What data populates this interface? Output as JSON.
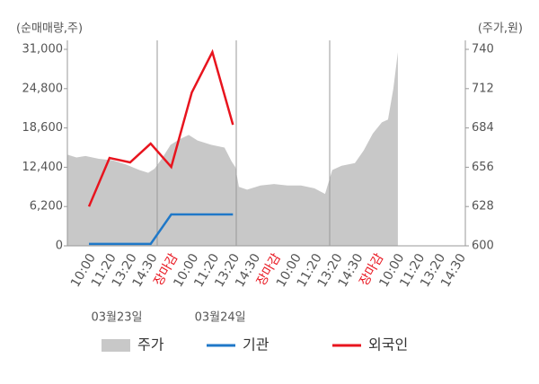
{
  "chart_data": {
    "type": "line",
    "y_axis_label": "(순매매량,주)",
    "y2_axis_label": "(주가,원)",
    "categories": [
      "10:00",
      "11:20",
      "13:20",
      "14:30",
      "장마감",
      "10:00",
      "11:20",
      "13:20",
      "14:30",
      "장마감",
      "10:00",
      "11:20",
      "13:20",
      "14:30",
      "장마감",
      "10:00",
      "11:20",
      "13:20",
      "14:30"
    ],
    "highlight_categories": [
      4,
      9,
      14
    ],
    "highlight_color": "#e8141e",
    "annotations": [
      {
        "text": "03월23일",
        "x": 1.35
      },
      {
        "text": "03월24일",
        "x": 6.38
      }
    ],
    "xlim": [
      -1.05,
      18.3
    ],
    "ylim": [
      0,
      31000
    ],
    "yticks": [
      0,
      {
        "value": 6200,
        "label": "6,200"
      },
      {
        "value": 12400,
        "label": "12,400"
      },
      {
        "value": 18600,
        "label": "18,600"
      },
      {
        "value": 24800,
        "label": "24,800"
      },
      {
        "value": 31000,
        "label": "31,000"
      }
    ],
    "y2lim": [
      600,
      740
    ],
    "y2ticks": [
      600,
      628,
      656,
      684,
      712,
      740
    ],
    "series": [
      {
        "name": "주가",
        "type": "area",
        "axis": "y2",
        "color": "#c8c8c8",
        "x": [
          -1.05,
          -0.61,
          -0.17,
          0.48,
          1.14,
          1.79,
          2.45,
          2.88,
          3.19,
          3.54,
          3.97,
          4.41,
          4.85,
          5.28,
          5.94,
          6.59,
          6.94,
          7.12,
          7.29,
          7.69,
          8.34,
          9.0,
          9.65,
          10.31,
          10.96,
          11.48,
          11.83,
          12.27,
          12.93,
          13.36,
          13.8,
          14.24,
          14.54,
          14.8,
          15.02
        ],
        "values": [
          665,
          663,
          664,
          662,
          661,
          658,
          654,
          652,
          655,
          662,
          672,
          676,
          679,
          675,
          672,
          670,
          660,
          656,
          642,
          640,
          643,
          644,
          643,
          643,
          641,
          637,
          654,
          657,
          659,
          668,
          680,
          688,
          690,
          712,
          738
        ]
      },
      {
        "name": "기관",
        "color": "#1f78c8",
        "x": [
          0,
          1,
          2,
          3,
          4,
          5,
          6,
          7
        ],
        "values": [
          300,
          300,
          300,
          300,
          4950,
          4950,
          4950,
          4950
        ]
      },
      {
        "name": "외국인",
        "color": "#e8141e",
        "x": [
          0,
          1,
          2,
          3,
          4,
          5,
          6,
          7
        ],
        "values": [
          6200,
          13870,
          13160,
          16130,
          12450,
          24200,
          30570,
          19100
        ]
      }
    ]
  }
}
